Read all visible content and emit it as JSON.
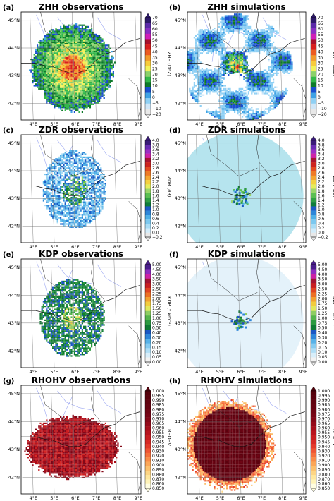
{
  "figure": {
    "lon_ticks": [
      "4°E",
      "5°E",
      "6°E",
      "7°E",
      "8°E",
      "9°E"
    ],
    "lat_ticks": [
      "45°N",
      "44°N",
      "43°N",
      "42°N"
    ]
  },
  "chart_data": [
    {
      "type": "heatmap",
      "panel_label": "(a)",
      "title": "ZHH observations",
      "colorbar": {
        "label": "ZHH (DbZ)",
        "ticks": [
          "70",
          "65",
          "60",
          "55",
          "50",
          "45",
          "40",
          "35",
          "30",
          "25",
          "20",
          "15",
          "10",
          "5",
          "0",
          "−5",
          "−10",
          "−20"
        ],
        "colors": [
          "#e8e8e8",
          "#cfe6f7",
          "#8fd0f4",
          "#3fa2e4",
          "#1a4fcf",
          "#0e7a2a",
          "#33b84a",
          "#8bd16a",
          "#f2f25a",
          "#f7cb3c",
          "#f29a2c",
          "#ec5a22",
          "#d81f1f",
          "#a8102c",
          "#d01fb8",
          "#8a2dc4",
          "#5b2aa8",
          "#2c1968"
        ]
      },
      "field": {
        "kind": "zhh-obs",
        "center": [
          5.9,
          43.3
        ]
      }
    },
    {
      "type": "heatmap",
      "panel_label": "(b)",
      "title": "ZHH simulations",
      "colorbar": {
        "label": "ZHH (DbZ)",
        "ticks": [
          "70",
          "65",
          "60",
          "55",
          "50",
          "45",
          "40",
          "35",
          "30",
          "25",
          "20",
          "15",
          "10",
          "5",
          "0",
          "−5",
          "−10",
          "−20"
        ],
        "colors": [
          "#e8e8e8",
          "#cfe6f7",
          "#8fd0f4",
          "#3fa2e4",
          "#1a4fcf",
          "#0e7a2a",
          "#33b84a",
          "#8bd16a",
          "#f2f25a",
          "#f7cb3c",
          "#f29a2c",
          "#ec5a22",
          "#d81f1f",
          "#a8102c",
          "#d01fb8",
          "#8a2dc4",
          "#5b2aa8",
          "#2c1968"
        ]
      },
      "field": {
        "kind": "zhh-sim",
        "center": [
          5.9,
          43.3
        ]
      }
    },
    {
      "type": "heatmap",
      "panel_label": "(c)",
      "title": "ZDR observations",
      "colorbar": {
        "label": "ZDR (dB)",
        "ticks": [
          "4.0",
          "3.8",
          "3.6",
          "3.4",
          "3.2",
          "3.0",
          "2.8",
          "2.6",
          "2.4",
          "2.2",
          "2.0",
          "1.8",
          "1.6",
          "1.4",
          "1.2",
          "1.0",
          "0.8",
          "0.6",
          "0.4",
          "0.2",
          "0.0",
          "−0.2"
        ],
        "colors": [
          "#e8e8e8",
          "#d2ecfa",
          "#a8dcf5",
          "#7cc8ef",
          "#4fb0e6",
          "#2e86d8",
          "#1c5bc6",
          "#0f7d3a",
          "#2f9f44",
          "#5bbf52",
          "#9ad66a",
          "#e4ec5c",
          "#f4d040",
          "#f4a632",
          "#ee7a28",
          "#e34c22",
          "#cc2420",
          "#a81530",
          "#cf24a8",
          "#9c2ec4",
          "#6a2eb4",
          "#3a1c78"
        ]
      },
      "field": {
        "kind": "zdr-obs",
        "center": [
          6.0,
          43.35
        ]
      }
    },
    {
      "type": "heatmap",
      "panel_label": "(d)",
      "title": "ZDR simulations",
      "colorbar": {
        "label": "ZDR (Db)",
        "ticks": [
          "4.0",
          "3.8",
          "3.6",
          "3.4",
          "3.2",
          "3.0",
          "2.8",
          "2.6",
          "2.4",
          "2.2",
          "2.0",
          "1.8",
          "1.6",
          "1.4",
          "1.2",
          "1.0",
          "0.8",
          "0.6",
          "0.4",
          "0.2",
          "0.0",
          "−0.2"
        ],
        "colors": [
          "#e8e8e8",
          "#d2ecfa",
          "#a8dcf5",
          "#7cc8ef",
          "#4fb0e6",
          "#2e86d8",
          "#1c5bc6",
          "#0f7d3a",
          "#2f9f44",
          "#5bbf52",
          "#9ad66a",
          "#e4ec5c",
          "#f4d040",
          "#f4a632",
          "#ee7a28",
          "#e34c22",
          "#cc2420",
          "#a81530",
          "#cf24a8",
          "#9c2ec4",
          "#6a2eb4",
          "#3a1c78"
        ]
      },
      "field": {
        "kind": "zdr-sim",
        "center": [
          6.0,
          43.1
        ]
      }
    },
    {
      "type": "heatmap",
      "panel_label": "(e)",
      "title": "KDP observations",
      "colorbar": {
        "label": "KDP (° km⁻¹)",
        "ticks": [
          "5.00",
          "4.50",
          "4.00",
          "3.50",
          "3.00",
          "2.50",
          "2.25",
          "2.00",
          "1.75",
          "1.50",
          "1.25",
          "1.00",
          "0.75",
          "0.50",
          "0.40",
          "0.30",
          "0.20",
          "0.15",
          "0.10",
          "0.05",
          "0.00"
        ],
        "colors": [
          "#f2f2f2",
          "#d8eefa",
          "#b0def6",
          "#86cbf0",
          "#58b2e8",
          "#2f86d9",
          "#1b57c4",
          "#0f7a34",
          "#2c9a40",
          "#56b44c",
          "#8fcd62",
          "#e0e85a",
          "#f2cc3e",
          "#f2a030",
          "#ec7026",
          "#e04422",
          "#c81f22",
          "#a21432",
          "#cc22a6",
          "#8e2cc0",
          "#4a1e8c"
        ]
      },
      "field": {
        "kind": "kdp-obs",
        "center": [
          5.9,
          43.2
        ]
      }
    },
    {
      "type": "heatmap",
      "panel_label": "(f)",
      "title": "KDP simulations",
      "colorbar": {
        "label": "KDP (° km⁻¹)",
        "ticks": [
          "5.00",
          "4.50",
          "4.00",
          "3.50",
          "3.00",
          "2.50",
          "2.25",
          "2.00",
          "1.75",
          "1.50",
          "1.25",
          "1.00",
          "0.75",
          "0.50",
          "0.40",
          "0.30",
          "0.20",
          "0.15",
          "0.10",
          "0.05",
          "0.00"
        ],
        "colors": [
          "#f2f2f2",
          "#d8eefa",
          "#b0def6",
          "#86cbf0",
          "#58b2e8",
          "#2f86d9",
          "#1b57c4",
          "#0f7a34",
          "#2c9a40",
          "#56b44c",
          "#8fcd62",
          "#e0e85a",
          "#f2cc3e",
          "#f2a030",
          "#ec7026",
          "#e04422",
          "#c81f22",
          "#a21432",
          "#cc22a6",
          "#8e2cc0",
          "#4a1e8c"
        ]
      },
      "field": {
        "kind": "kdp-sim",
        "center": [
          6.0,
          43.1
        ]
      }
    },
    {
      "type": "heatmap",
      "panel_label": "(g)",
      "title": "RHOHV observations",
      "colorbar": {
        "label": "RHOHV",
        "ticks": [
          "1.000",
          "0.995",
          "0.990",
          "0.985",
          "0.980",
          "0.975",
          "0.970",
          "0.965",
          "0.960",
          "0.955",
          "0.950",
          "0.945",
          "0.940",
          "0.930",
          "0.920",
          "0.910",
          "0.900",
          "0.890",
          "0.880",
          "0.870",
          "0.860",
          "0.850"
        ],
        "colors": [
          "#fffde0",
          "#fff3b8",
          "#ffe79c",
          "#fdd584",
          "#fcc06c",
          "#fba658",
          "#f98c48",
          "#f5703c",
          "#ee5534",
          "#e43c2c",
          "#d72a26",
          "#c81e22",
          "#b8141f",
          "#a60f1c",
          "#940a1a",
          "#840818",
          "#780616",
          "#6e0514",
          "#660412",
          "#600310",
          "#5a020e",
          "#54020c"
        ]
      },
      "field": {
        "kind": "rho-obs",
        "center": [
          5.9,
          43.1
        ]
      }
    },
    {
      "type": "heatmap",
      "panel_label": "(h)",
      "title": "RHOHV simulations",
      "colorbar": {
        "label": "RHOHV",
        "ticks": [
          "1.000",
          "0.995",
          "0.990",
          "0.985",
          "0.980",
          "0.975",
          "0.970",
          "0.965",
          "0.960",
          "0.955",
          "0.950",
          "0.945",
          "0.940",
          "0.930",
          "0.920",
          "0.910",
          "0.900",
          "0.890",
          "0.880",
          "0.870",
          "0.860",
          "0.850"
        ],
        "colors": [
          "#fffde0",
          "#fff3b8",
          "#ffe79c",
          "#fdd584",
          "#fcc06c",
          "#fba658",
          "#f98c48",
          "#f5703c",
          "#ee5534",
          "#e43c2c",
          "#d72a26",
          "#c81e22",
          "#b8141f",
          "#a60f1c",
          "#940a1a",
          "#840818",
          "#780616",
          "#6e0514",
          "#660412",
          "#600310",
          "#5a020e",
          "#54020c"
        ]
      },
      "field": {
        "kind": "rho-sim",
        "center": [
          5.5,
          43.2
        ]
      }
    }
  ]
}
